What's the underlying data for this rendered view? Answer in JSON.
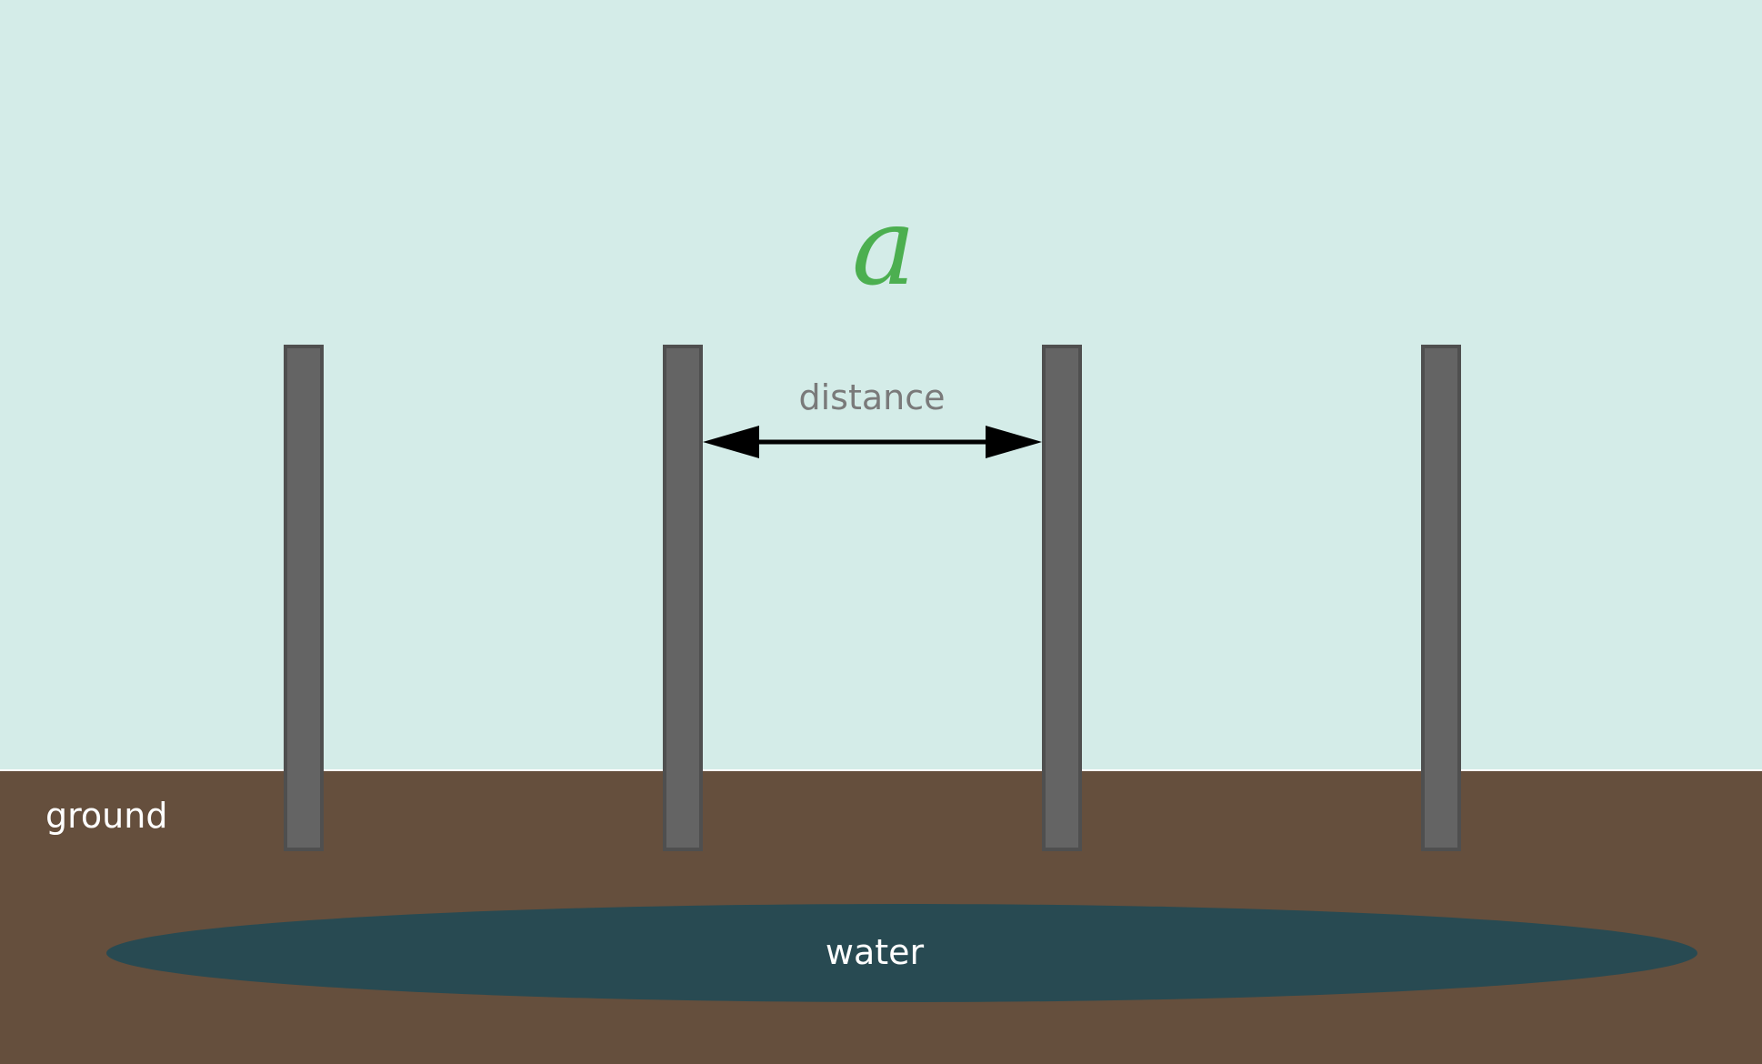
{
  "labels": {
    "symbol": "a",
    "distance": "distance",
    "ground": "ground",
    "water": "water"
  },
  "colors": {
    "sky": "#d4ece8",
    "ground": "#654f3d",
    "water": "#284a52",
    "post_fill": "#646464",
    "post_edge": "#4f4f4f",
    "arrow": "#000000",
    "symbol": "#4caf50",
    "distance_text": "#7a7a7a",
    "white_text": "#ffffff"
  },
  "posts": [
    {
      "id": "post-1"
    },
    {
      "id": "post-2"
    },
    {
      "id": "post-3"
    },
    {
      "id": "post-4"
    }
  ]
}
